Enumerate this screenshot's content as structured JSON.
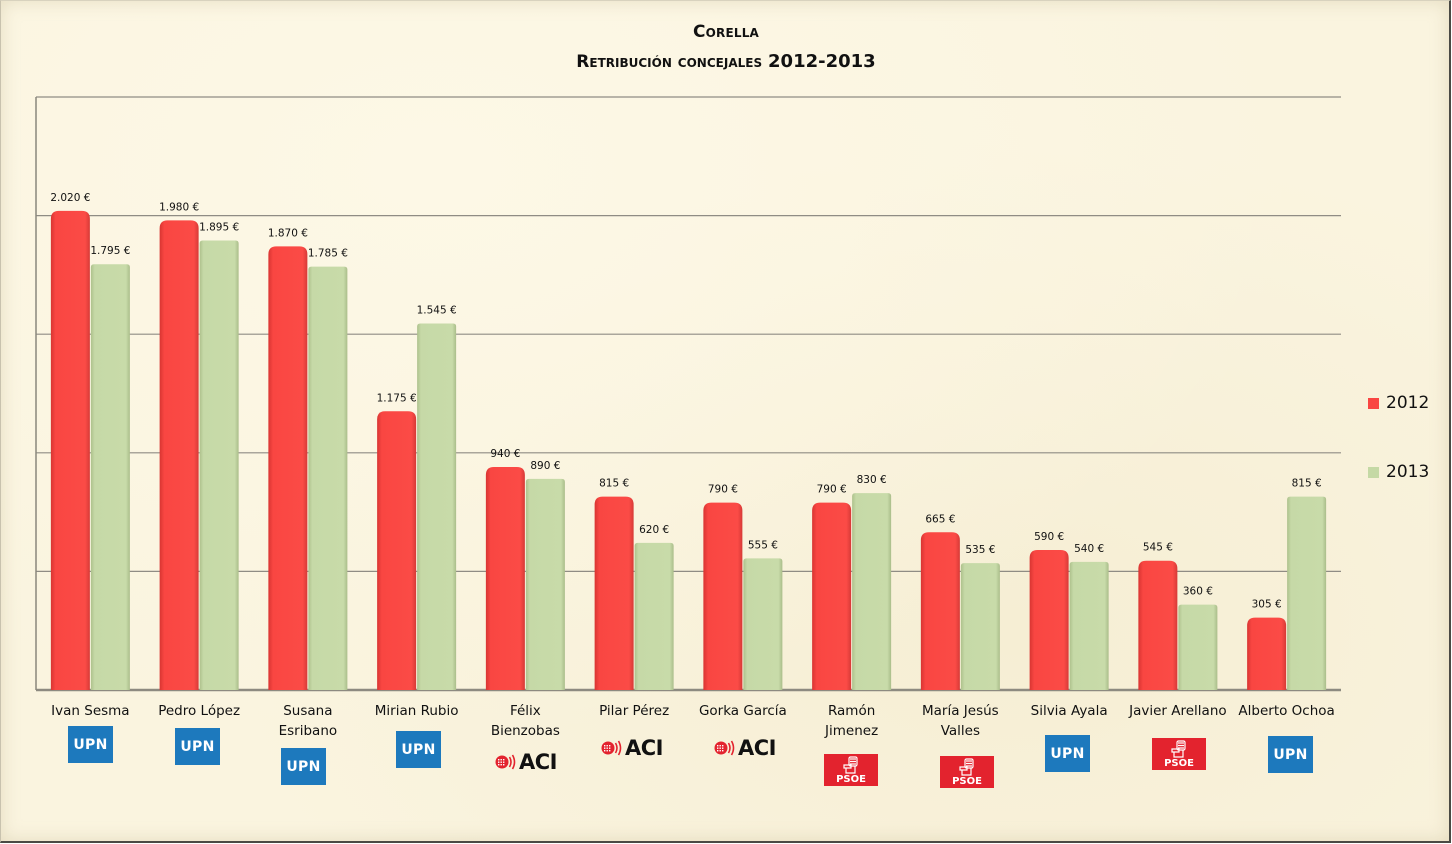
{
  "chart_data": {
    "type": "bar",
    "title": "Corella",
    "subtitle_prefix": "Retribución concejales ",
    "subtitle_years": "2012-2013",
    "xlabel": "",
    "ylabel": "",
    "ylim": [
      0,
      2500
    ],
    "grid": true,
    "gridline_step": 500,
    "legend_position": "right",
    "categories": [
      "Ivan Sesma",
      "Pedro López",
      "Susana Esribano",
      "Mirian Rubio",
      "Félix Bienzobas",
      "Pilar Pérez",
      "Gorka García",
      "Ramón Jimenez",
      "María Jesús Valles",
      "Silvia Ayala",
      "Javier Arellano",
      "Alberto Ochoa"
    ],
    "category_lines": [
      [
        "Ivan Sesma"
      ],
      [
        "Pedro López"
      ],
      [
        "Susana",
        "Esribano"
      ],
      [
        "Mirian Rubio"
      ],
      [
        "Félix",
        "Bienzobas"
      ],
      [
        "Pilar Pérez"
      ],
      [
        "Gorka García"
      ],
      [
        "Ramón",
        "Jimenez"
      ],
      [
        "María Jesús",
        "Valles"
      ],
      [
        "Silvia Ayala"
      ],
      [
        "Javier Arellano"
      ],
      [
        "Alberto Ochoa"
      ]
    ],
    "parties": [
      "UPN",
      "UPN",
      "UPN",
      "UPN",
      "ACI",
      "ACI",
      "ACI",
      "PSOE",
      "PSOE",
      "UPN",
      "PSOE",
      "UPN"
    ],
    "series": [
      {
        "name": "2012",
        "color": "#f94642",
        "values": [
          2020,
          1980,
          1870,
          1175,
          940,
          815,
          790,
          790,
          665,
          590,
          545,
          305
        ],
        "labels": [
          "2.020 €",
          "1.980 €",
          "1.870 €",
          "1.175 €",
          "940 €",
          "815 €",
          "790 €",
          "790 €",
          "665 €",
          "590 €",
          "545 €",
          "305 €"
        ]
      },
      {
        "name": "2013",
        "color": "#c5d9a5",
        "values": [
          1795,
          1895,
          1785,
          1545,
          890,
          620,
          555,
          830,
          535,
          540,
          360,
          815
        ],
        "labels": [
          "1.795 €",
          "1.895 €",
          "1.785 €",
          "1.545 €",
          "890 €",
          "620 €",
          "555 €",
          "830 €",
          "535 €",
          "540 €",
          "360 €",
          "815 €"
        ]
      }
    ]
  },
  "party_logos": {
    "UPN": {
      "text": "UPN",
      "color": "#1d79bd"
    },
    "ACI": {
      "text": "ACI",
      "color": "#e3232e"
    },
    "PSOE": {
      "text": "PSOE",
      "color": "#e3232e"
    }
  }
}
